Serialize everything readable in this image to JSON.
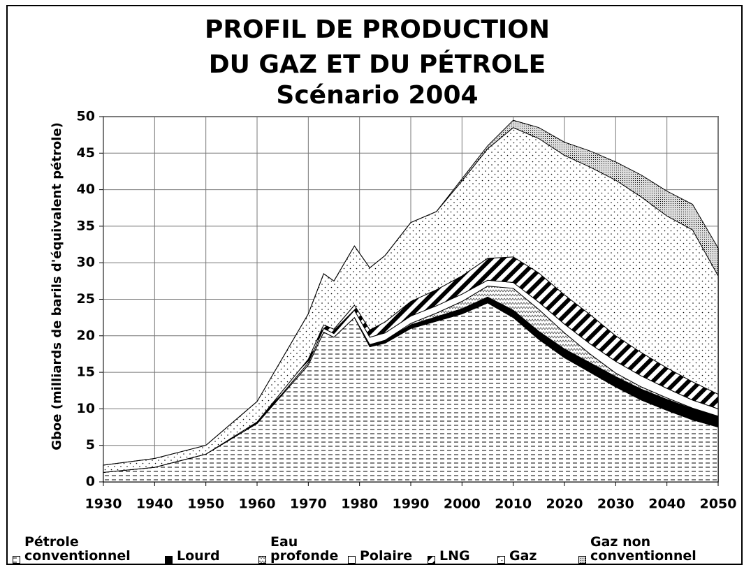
{
  "chart_data": {
    "type": "stacked_area",
    "title": [
      "PROFIL DE PRODUCTION",
      "DU GAZ ET DU PÉTROLE",
      "Scénario 2004"
    ],
    "y_label": "Gboe (milliards de barils d'équivalent pétrole)",
    "x": [
      1930,
      1940,
      1950,
      1960,
      1970,
      1973,
      1975,
      1979,
      1982,
      1985,
      1990,
      1995,
      2000,
      2005,
      2010,
      2015,
      2020,
      2025,
      2030,
      2035,
      2040,
      2045,
      2050
    ],
    "series": [
      {
        "name": "Pétrole conventionnel",
        "values": [
          1.3,
          2,
          3.8,
          8,
          16,
          20.5,
          19.8,
          22.5,
          18.5,
          19,
          21,
          22,
          23,
          24.5,
          22.5,
          19.5,
          17,
          15,
          13,
          11.2,
          9.8,
          8.5,
          7.5
        ]
      },
      {
        "name": "Lourd",
        "color": "#000000",
        "values": [
          0,
          0,
          0,
          0,
          0,
          0,
          0,
          0,
          0.3,
          0.4,
          0.5,
          0.6,
          0.7,
          0.8,
          1,
          1.1,
          1.2,
          1.3,
          1.4,
          1.5,
          1.5,
          1.5,
          1.5
        ]
      },
      {
        "name": "Eau profonde",
        "values": [
          0,
          0,
          0,
          0,
          0,
          0,
          0,
          0,
          0,
          0,
          0.2,
          0.5,
          1,
          1.5,
          3,
          3,
          2.2,
          1.2,
          0.5,
          0.3,
          0.2,
          0.1,
          0
        ]
      },
      {
        "name": "Polaire",
        "color": "#ffffff",
        "values": [
          0,
          0,
          0,
          0,
          0.3,
          0.5,
          0.5,
          1,
          1,
          1,
          1,
          1,
          1,
          0.8,
          0.8,
          1,
          1.2,
          1.4,
          1.6,
          1.5,
          1.3,
          1.1,
          1
        ]
      },
      {
        "name": "LNG",
        "values": [
          0,
          0,
          0,
          0.2,
          0.5,
          0.5,
          0.6,
          0.7,
          1,
          1.5,
          2,
          2.2,
          2.5,
          3,
          3.5,
          4,
          4,
          4,
          3.5,
          3.2,
          2.8,
          2.5,
          2
        ]
      },
      {
        "name": "Gaz",
        "values": [
          1,
          1.2,
          1.2,
          2.8,
          6.2,
          7,
          6.6,
          8.1,
          8.5,
          9.1,
          10.8,
          10.7,
          13,
          15,
          17.7,
          18.4,
          19.1,
          20.2,
          21.3,
          21.3,
          20.8,
          20.8,
          16.2
        ]
      },
      {
        "name": "Gaz non conventionnel",
        "values": [
          0,
          0,
          0,
          0,
          0,
          0,
          0,
          0,
          0,
          0,
          0,
          0,
          0.3,
          0.4,
          1,
          1.5,
          1.8,
          2.2,
          2.5,
          3,
          3.4,
          3.5,
          3.8
        ]
      }
    ],
    "xlim": [
      1930,
      2050
    ],
    "xticks": [
      1930,
      1940,
      1950,
      1960,
      1970,
      1980,
      1990,
      2000,
      2010,
      2020,
      2030,
      2040,
      2050
    ],
    "ylim": [
      0,
      50
    ],
    "yticks": [
      0,
      5,
      10,
      15,
      20,
      25,
      30,
      35,
      40,
      45,
      50
    ],
    "grid": true,
    "legend": "bottom"
  }
}
